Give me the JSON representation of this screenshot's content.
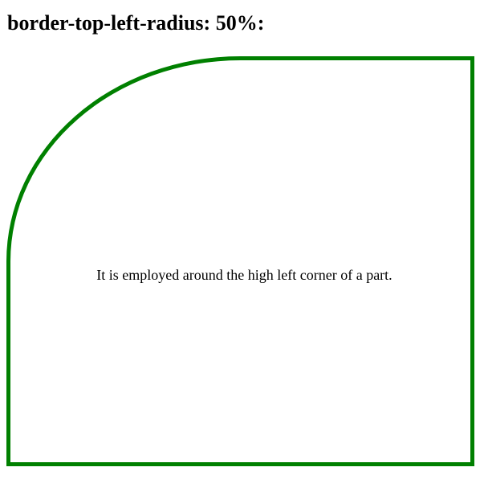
{
  "page": {
    "title": "border-top-left-radius: 50%:",
    "box_text": "It is employed around the high left corner of a part.",
    "border_color": "#008000"
  }
}
